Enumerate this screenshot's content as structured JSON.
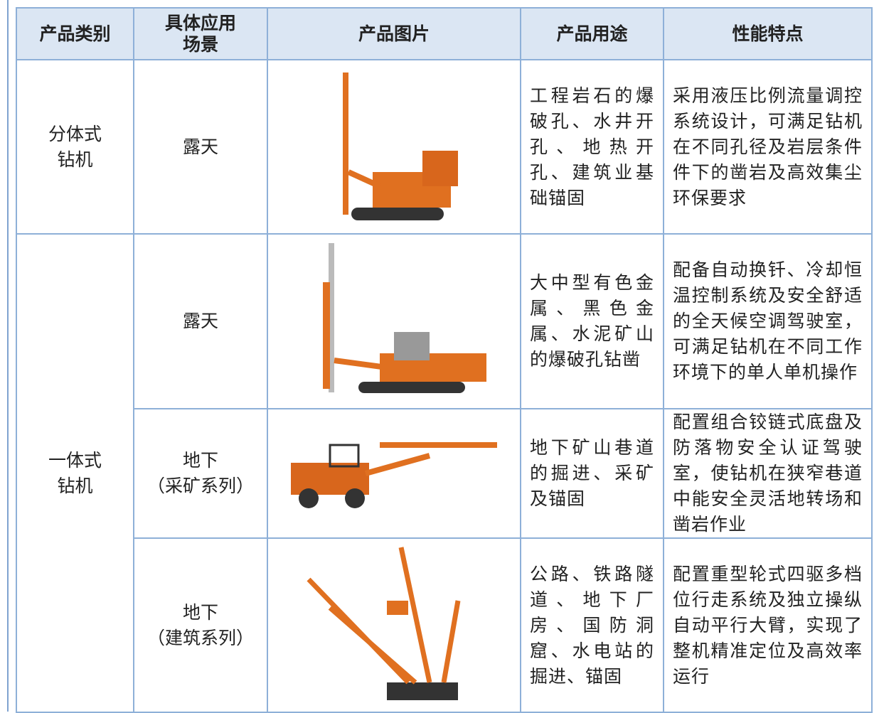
{
  "table": {
    "header": [
      "产品类别",
      "具体应用场景",
      "产品图片",
      "产品用途",
      "性能特点"
    ],
    "rows": [
      {
        "category": "分体式钻机",
        "scene": [
          "露天"
        ],
        "usage": "工程岩石的爆破孔、水井开孔、地热开孔、建筑业基础锚固",
        "features": "采用液压比例流量调控系统设计，可满足钻机在不同孔径及岩层条件件下的凿岩及高效集尘环保要求"
      },
      {
        "category": "一体式钻机",
        "scene": [
          "露天"
        ],
        "usage": "大中型有色金属、黑色金属、水泥矿山的爆破孔钻凿",
        "features": "配备自动换钎、冷却恒温控制系统及安全舒适的全天候空调驾驶室，可满足钻机在不同工作环境下的单人单机操作"
      },
      {
        "scene": [
          "地下",
          "（采矿系列）"
        ],
        "usage": "地下矿山巷道的掘进、采矿及锚固",
        "features": "配置组合铰链式底盘及防落物安全认证驾驶室，使钻机在狭窄巷道中能安全灵活地转场和凿岩作业"
      },
      {
        "scene": [
          "地下",
          "（建筑系列）"
        ],
        "usage": "公路、铁路隧道、地下厂房、国防洞窟、水电站的掘进、锚固",
        "features": "配置重型轮式四驱多档位行走系统及独立操纵自动平行大臂，实现了整机精准定位及高效率运行"
      }
    ]
  }
}
